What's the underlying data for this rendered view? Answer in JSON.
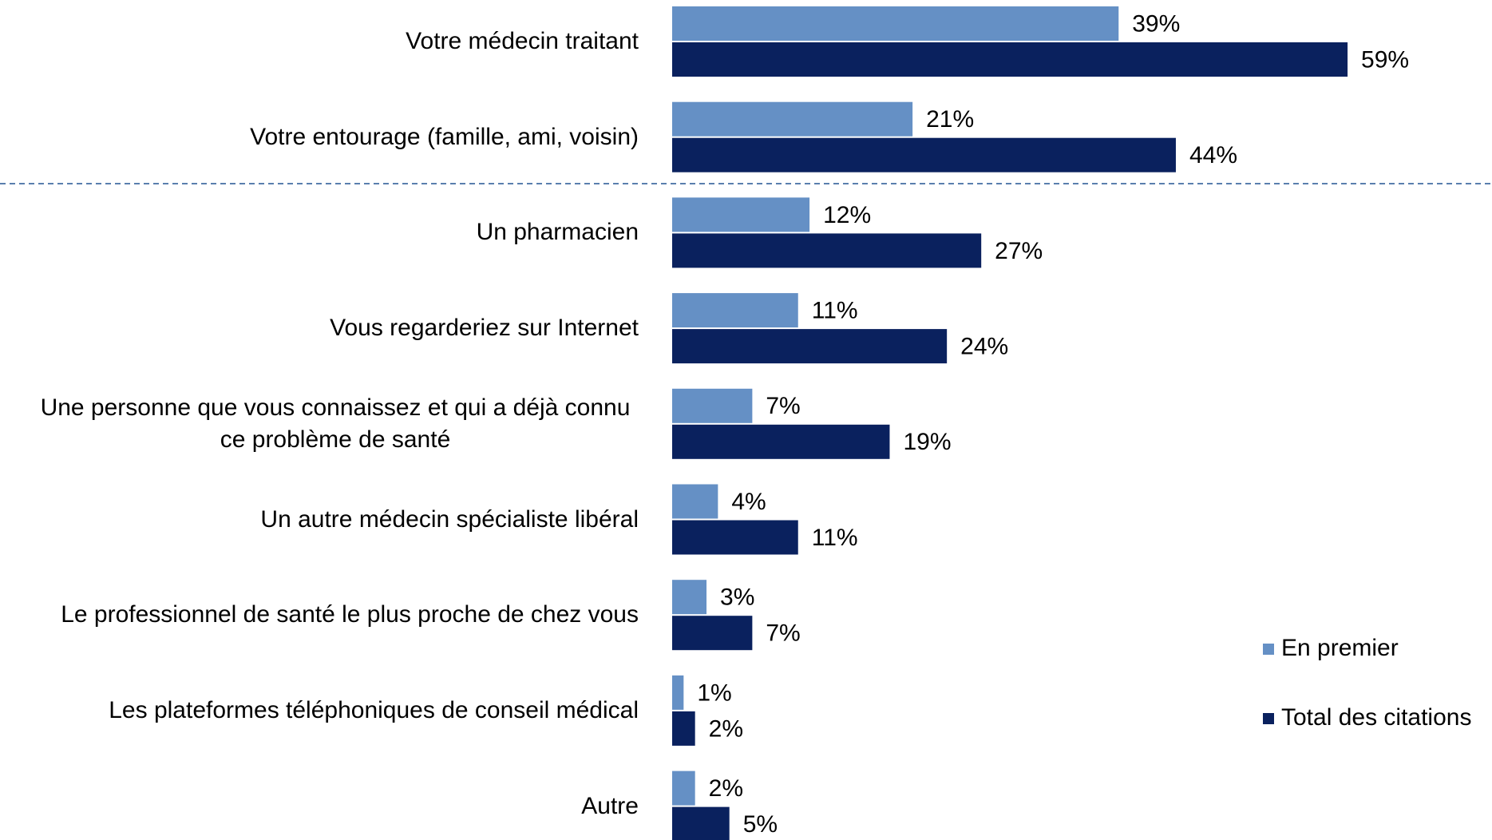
{
  "chart_data": {
    "type": "hbar",
    "categories": [
      "Votre médecin traitant",
      "Votre entourage (famille, ami, voisin)",
      "Un pharmacien",
      "Vous regarderiez sur Internet",
      "Une personne que vous connaissez et qui a déjà connu ce problème de santé",
      "Un autre médecin spécialiste libéral",
      "Le professionnel de santé le plus proche de chez vous",
      "Les plateformes téléphoniques de conseil médical",
      "Autre"
    ],
    "series": [
      {
        "name": "En premier",
        "color": "#6590c5",
        "values": [
          39,
          21,
          12,
          11,
          7,
          4,
          3,
          1,
          2
        ],
        "value_labels": [
          "39%",
          "21%",
          "12%",
          "11%",
          "7%",
          "4%",
          "3%",
          "1%",
          "2%"
        ]
      },
      {
        "name": "Total des citations",
        "color": "#0a215e",
        "values": [
          59,
          44,
          27,
          24,
          19,
          11,
          7,
          2,
          5
        ],
        "value_labels": [
          "59%",
          "44%",
          "27%",
          "24%",
          "19%",
          "11%",
          "7%",
          "2%",
          "5%"
        ]
      }
    ],
    "legend": "right"
  }
}
